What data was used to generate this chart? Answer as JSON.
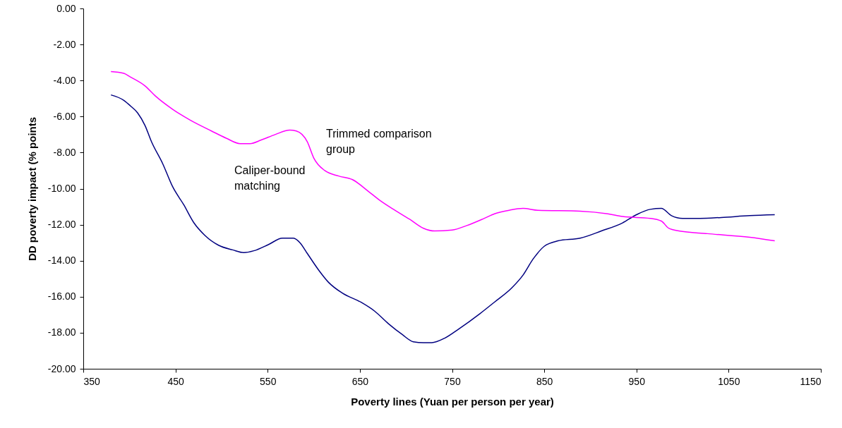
{
  "chart_data": {
    "type": "line",
    "xlabel": "Poverty lines (Yuan per person per year)",
    "ylabel": "DD poverty impact (% points",
    "x": [
      380,
      394,
      401,
      409,
      417,
      424,
      436,
      447,
      459,
      470,
      482,
      497,
      512,
      524,
      535,
      551,
      566,
      578,
      585,
      593,
      605,
      616,
      631,
      651,
      666,
      681,
      696,
      708,
      719,
      728,
      742,
      757,
      780,
      796,
      815,
      827,
      838,
      850,
      865,
      889,
      912,
      935,
      950,
      965,
      977,
      988,
      1000,
      1019,
      1042,
      1073,
      1100
    ],
    "series": [
      {
        "color": "#000080",
        "values": [
          -4.8,
          -5.1,
          -5.4,
          -5.8,
          -6.5,
          -7.4,
          -8.6,
          -9.9,
          -10.9,
          -11.9,
          -12.6,
          -13.15,
          -13.4,
          -13.55,
          -13.45,
          -13.1,
          -12.75,
          -12.75,
          -13.0,
          -13.6,
          -14.5,
          -15.2,
          -15.8,
          -16.3,
          -16.8,
          -17.5,
          -18.1,
          -18.5,
          -18.55,
          -18.55,
          -18.3,
          -17.8,
          -16.95,
          -16.3,
          -15.5,
          -14.8,
          -13.9,
          -13.2,
          -12.9,
          -12.75,
          -12.35,
          -11.9,
          -11.45,
          -11.15,
          -11.1,
          -11.5,
          -11.65,
          -11.65,
          -11.6,
          -11.5,
          -11.45
        ]
      },
      {
        "color": "#ff00ff",
        "x": [
          380,
          394,
          401,
          417,
          428,
          447,
          466,
          489,
          505,
          520,
          531,
          543,
          558,
          574,
          581,
          593,
          600,
          612,
          627,
          642,
          658,
          673,
          688,
          704,
          719,
          731,
          750,
          766,
          785,
          796,
          812,
          827,
          843,
          889,
          919,
          935,
          965,
          977,
          985,
          996,
          1027,
          1073,
          1100
        ],
        "values": [
          -3.5,
          -3.6,
          -3.8,
          -4.3,
          -4.85,
          -5.6,
          -6.2,
          -6.8,
          -7.2,
          -7.5,
          -7.5,
          -7.3,
          -7.0,
          -6.75,
          -6.8,
          -7.4,
          -8.3,
          -9.0,
          -9.3,
          -9.5,
          -10.1,
          -10.7,
          -11.2,
          -11.7,
          -12.2,
          -12.35,
          -12.3,
          -12.05,
          -11.65,
          -11.4,
          -11.2,
          -11.1,
          -11.2,
          -11.25,
          -11.4,
          -11.55,
          -11.65,
          -11.8,
          -12.2,
          -12.35,
          -12.5,
          -12.7,
          -12.9
        ]
      }
    ],
    "annotations": [
      "Trimmed comparison group",
      "Caliper-bound matching"
    ],
    "xlim": [
      350,
      1150
    ],
    "xticks": [
      350,
      450,
      550,
      650,
      750,
      850,
      950,
      1050,
      1150
    ],
    "ylim": [
      -20,
      0
    ],
    "yticks": [
      {
        "value": 0,
        "label": "0.00"
      },
      {
        "value": -2,
        "label": "-2.00"
      },
      {
        "value": -4,
        "label": "-4.00"
      },
      {
        "value": -6,
        "label": "-6.00"
      },
      {
        "value": -8,
        "label": "-8.00"
      },
      {
        "value": -10,
        "label": "-10.00"
      },
      {
        "value": -12,
        "label": "-12.00"
      },
      {
        "value": -14,
        "label": "-14.00"
      },
      {
        "value": -16,
        "label": "-16.00"
      },
      {
        "value": -18,
        "label": "-18.00"
      },
      {
        "value": -20,
        "label": "-20.00"
      }
    ],
    "grid": false,
    "marker": "none",
    "line_style": "solid"
  }
}
